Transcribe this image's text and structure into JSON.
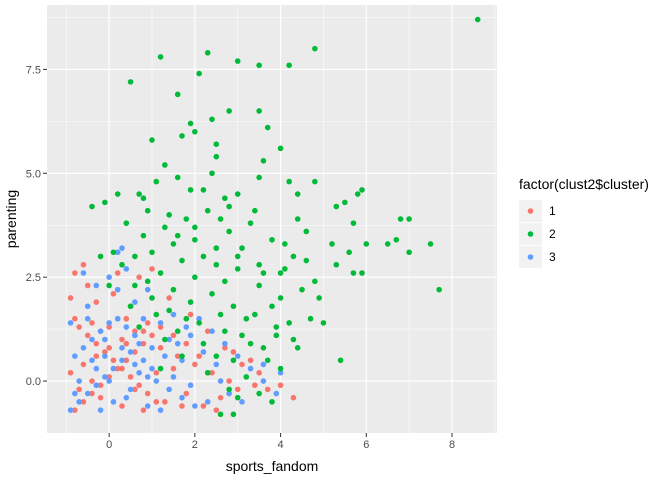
{
  "chart_data": {
    "type": "scatter",
    "xlabel": "sports_fandom",
    "ylabel": "parenting",
    "xlim": [
      -1.45,
      9.05
    ],
    "ylim": [
      -1.25,
      9.05
    ],
    "x_ticks": [
      0,
      2,
      4,
      6,
      8
    ],
    "y_ticks": [
      0.0,
      2.5,
      5.0,
      7.5
    ],
    "x_tick_labels": [
      "0",
      "2",
      "4",
      "6",
      "8"
    ],
    "y_tick_labels": [
      "0.0",
      "2.5",
      "5.0",
      "7.5"
    ],
    "grid": true,
    "legend": {
      "title": "factor(clust2$cluster)",
      "position": "right"
    },
    "colors": {
      "1": "#F8766D",
      "2": "#00BA38",
      "3": "#619CFF"
    },
    "series": [
      {
        "name": "1",
        "color": "#F8766D",
        "points": [
          [
            -0.8,
            -0.7
          ],
          [
            -0.6,
            -0.5
          ],
          [
            -0.4,
            -0.3
          ],
          [
            -0.2,
            -0.1
          ],
          [
            0.0,
            0.1
          ],
          [
            0.2,
            0.3
          ],
          [
            0.4,
            0.5
          ],
          [
            0.6,
            0.7
          ],
          [
            0.8,
            0.9
          ],
          [
            1.0,
            1.1
          ],
          [
            -0.7,
            1.3
          ],
          [
            -0.5,
            1.1
          ],
          [
            -0.3,
            0.9
          ],
          [
            -0.1,
            0.7
          ],
          [
            0.1,
            0.5
          ],
          [
            0.3,
            0.3
          ],
          [
            0.5,
            0.1
          ],
          [
            0.7,
            -0.1
          ],
          [
            0.9,
            -0.3
          ],
          [
            1.1,
            -0.5
          ],
          [
            -0.9,
            0.2
          ],
          [
            -0.6,
            0.4
          ],
          [
            -0.3,
            0.6
          ],
          [
            0.0,
            0.8
          ],
          [
            0.3,
            1.0
          ],
          [
            0.6,
            1.2
          ],
          [
            0.9,
            1.4
          ],
          [
            1.2,
            1.3
          ],
          [
            1.5,
            1.1
          ],
          [
            1.8,
            0.9
          ],
          [
            -0.8,
            1.5
          ],
          [
            -0.4,
            1.4
          ],
          [
            0.0,
            1.3
          ],
          [
            0.4,
            1.5
          ],
          [
            0.8,
            1.2
          ],
          [
            1.2,
            0.8
          ],
          [
            1.6,
            0.6
          ],
          [
            2.0,
            0.4
          ],
          [
            2.4,
            0.2
          ],
          [
            2.8,
            0.0
          ],
          [
            -0.7,
            -0.2
          ],
          [
            -0.2,
            -0.4
          ],
          [
            0.3,
            -0.6
          ],
          [
            0.8,
            -0.7
          ],
          [
            1.3,
            -0.5
          ],
          [
            1.8,
            -0.3
          ],
          [
            2.2,
            -0.6
          ],
          [
            2.6,
            -0.4
          ],
          [
            3.0,
            -0.2
          ],
          [
            3.4,
            -0.1
          ],
          [
            -0.9,
            2.0
          ],
          [
            -0.8,
            2.6
          ],
          [
            -0.5,
            2.3
          ],
          [
            -0.3,
            1.9
          ],
          [
            0.1,
            2.1
          ],
          [
            0.5,
            1.8
          ],
          [
            0.2,
            2.6
          ],
          [
            -0.6,
            2.8
          ],
          [
            0.7,
            2.5
          ],
          [
            1.0,
            2.7
          ],
          [
            1.4,
            2.0
          ],
          [
            1.9,
            1.6
          ],
          [
            2.3,
            1.2
          ],
          [
            2.7,
            0.8
          ],
          [
            3.1,
            0.4
          ],
          [
            3.5,
            0.2
          ],
          [
            4.0,
            -0.1
          ],
          [
            4.3,
            -0.4
          ],
          [
            3.7,
            -0.2
          ],
          [
            2.5,
            -0.7
          ],
          [
            -0.4,
            0.0
          ],
          [
            0.6,
            -0.2
          ],
          [
            1.5,
            0.3
          ],
          [
            2.1,
            0.6
          ],
          [
            0.4,
            0.9
          ],
          [
            -0.2,
            1.2
          ],
          [
            1.1,
            0.2
          ],
          [
            1.7,
            -0.6
          ],
          [
            2.9,
            0.7
          ],
          [
            3.3,
            0.5
          ]
        ]
      },
      {
        "name": "2",
        "color": "#00BA38",
        "points": [
          [
            8.6,
            8.7
          ],
          [
            4.8,
            8.0
          ],
          [
            2.3,
            7.9
          ],
          [
            1.2,
            7.8
          ],
          [
            3.0,
            7.7
          ],
          [
            3.5,
            7.6
          ],
          [
            4.2,
            7.6
          ],
          [
            2.1,
            7.4
          ],
          [
            0.5,
            7.2
          ],
          [
            1.6,
            6.9
          ],
          [
            2.8,
            6.5
          ],
          [
            3.5,
            6.5
          ],
          [
            2.4,
            6.3
          ],
          [
            3.7,
            6.1
          ],
          [
            1.9,
            6.2
          ],
          [
            2.0,
            6.0
          ],
          [
            1.7,
            5.9
          ],
          [
            1.0,
            5.8
          ],
          [
            4.0,
            5.6
          ],
          [
            2.5,
            5.7
          ],
          [
            3.6,
            5.3
          ],
          [
            2.5,
            5.4
          ],
          [
            1.3,
            5.2
          ],
          [
            2.4,
            5.0
          ],
          [
            1.6,
            4.9
          ],
          [
            3.5,
            4.9
          ],
          [
            1.1,
            4.8
          ],
          [
            4.2,
            4.8
          ],
          [
            4.8,
            4.8
          ],
          [
            5.8,
            4.5
          ],
          [
            5.9,
            4.6
          ],
          [
            0.2,
            4.5
          ],
          [
            -0.4,
            4.2
          ],
          [
            -0.1,
            4.3
          ],
          [
            0.7,
            4.5
          ],
          [
            0.8,
            4.4
          ],
          [
            1.9,
            4.6
          ],
          [
            2.2,
            4.6
          ],
          [
            2.7,
            4.4
          ],
          [
            3.0,
            4.5
          ],
          [
            4.4,
            4.5
          ],
          [
            5.5,
            4.3
          ],
          [
            5.3,
            4.2
          ],
          [
            5.7,
            3.8
          ],
          [
            6.8,
            3.9
          ],
          [
            7.0,
            3.9
          ],
          [
            6.0,
            3.3
          ],
          [
            6.5,
            3.3
          ],
          [
            7.5,
            3.3
          ],
          [
            6.7,
            3.4
          ],
          [
            5.6,
            3.1
          ],
          [
            5.2,
            3.3
          ],
          [
            7.0,
            3.1
          ],
          [
            5.3,
            2.8
          ],
          [
            5.7,
            2.6
          ],
          [
            7.7,
            2.2
          ],
          [
            5.9,
            2.6
          ],
          [
            4.8,
            2.4
          ],
          [
            5.4,
            0.5
          ],
          [
            4.2,
            1.4
          ],
          [
            3.0,
            3.0
          ],
          [
            2.5,
            2.8
          ],
          [
            2.0,
            2.5
          ],
          [
            1.5,
            2.2
          ],
          [
            1.0,
            2.0
          ],
          [
            0.5,
            1.8
          ],
          [
            3.5,
            2.8
          ],
          [
            4.0,
            2.6
          ],
          [
            4.5,
            2.2
          ],
          [
            3.8,
            1.8
          ],
          [
            3.2,
            1.5
          ],
          [
            2.7,
            1.2
          ],
          [
            2.2,
            0.9
          ],
          [
            1.7,
            0.6
          ],
          [
            1.2,
            0.3
          ],
          [
            2.9,
            0.5
          ],
          [
            3.3,
            0.9
          ],
          [
            3.9,
            1.1
          ],
          [
            4.4,
            0.8
          ],
          [
            4.7,
            1.5
          ],
          [
            0.8,
            3.5
          ],
          [
            1.3,
            3.7
          ],
          [
            1.8,
            3.9
          ],
          [
            2.3,
            4.1
          ],
          [
            2.8,
            3.6
          ],
          [
            3.3,
            3.8
          ],
          [
            3.8,
            3.4
          ],
          [
            4.3,
            3.0
          ],
          [
            4.6,
            3.6
          ],
          [
            1.0,
            3.1
          ],
          [
            1.5,
            3.3
          ],
          [
            2.0,
            3.4
          ],
          [
            2.5,
            3.2
          ],
          [
            3.0,
            2.7
          ],
          [
            3.5,
            2.3
          ],
          [
            4.0,
            2.0
          ],
          [
            1.2,
            2.6
          ],
          [
            1.7,
            2.9
          ],
          [
            2.2,
            3.0
          ],
          [
            2.7,
            2.4
          ],
          [
            0.3,
            2.8
          ],
          [
            0.6,
            3.0
          ],
          [
            0.9,
            2.4
          ],
          [
            1.4,
            1.7
          ],
          [
            1.9,
            1.9
          ],
          [
            2.4,
            2.1
          ],
          [
            2.9,
            1.8
          ],
          [
            3.4,
            1.6
          ],
          [
            3.9,
            1.3
          ],
          [
            4.3,
            1.0
          ],
          [
            0.4,
            3.8
          ],
          [
            0.1,
            3.1
          ],
          [
            -0.2,
            3.0
          ],
          [
            0.9,
            4.1
          ],
          [
            1.4,
            4.0
          ],
          [
            2.0,
            3.7
          ],
          [
            2.6,
            3.9
          ],
          [
            3.1,
            3.2
          ],
          [
            3.6,
            2.6
          ],
          [
            4.1,
            2.7
          ],
          [
            1.6,
            1.2
          ],
          [
            2.1,
            1.4
          ],
          [
            2.6,
            1.6
          ],
          [
            3.1,
            1.1
          ],
          [
            3.6,
            0.8
          ],
          [
            4.0,
            0.3
          ],
          [
            2.3,
            0.2
          ],
          [
            2.8,
            -0.2
          ],
          [
            3.2,
            0.1
          ],
          [
            3.7,
            0.5
          ],
          [
            1.3,
            1.0
          ],
          [
            1.8,
            1.5
          ],
          [
            0.7,
            1.3
          ],
          [
            1.1,
            1.6
          ],
          [
            2.5,
            0.6
          ],
          [
            3.0,
            -0.4
          ],
          [
            2.6,
            -0.8
          ],
          [
            2.9,
            -0.8
          ],
          [
            3.5,
            -0.3
          ],
          [
            3.8,
            -0.5
          ],
          [
            4.1,
            3.3
          ],
          [
            4.4,
            3.9
          ],
          [
            4.6,
            2.9
          ],
          [
            4.9,
            2.0
          ],
          [
            5.0,
            1.4
          ],
          [
            3.4,
            4.1
          ],
          [
            2.8,
            4.2
          ],
          [
            1.6,
            3.5
          ],
          [
            0.6,
            2.3
          ],
          [
            0.0,
            2.3
          ]
        ]
      },
      {
        "name": "3",
        "color": "#619CFF",
        "points": [
          [
            -0.9,
            -0.7
          ],
          [
            -0.7,
            -0.5
          ],
          [
            -0.5,
            -0.3
          ],
          [
            -0.3,
            -0.1
          ],
          [
            -0.1,
            0.1
          ],
          [
            0.1,
            0.3
          ],
          [
            0.3,
            0.5
          ],
          [
            0.5,
            0.7
          ],
          [
            0.7,
            0.9
          ],
          [
            0.9,
            -0.6
          ],
          [
            -0.8,
            0.6
          ],
          [
            -0.6,
            0.8
          ],
          [
            -0.4,
            1.0
          ],
          [
            -0.2,
            1.2
          ],
          [
            0.0,
            1.4
          ],
          [
            0.2,
            1.5
          ],
          [
            0.4,
            1.3
          ],
          [
            0.6,
            1.1
          ],
          [
            0.8,
            0.5
          ],
          [
            1.0,
            0.3
          ],
          [
            -0.9,
            1.4
          ],
          [
            -0.5,
            1.5
          ],
          [
            -0.1,
            1.0
          ],
          [
            0.3,
            0.8
          ],
          [
            0.7,
            0.2
          ],
          [
            1.1,
            0.0
          ],
          [
            1.4,
            -0.2
          ],
          [
            1.7,
            -0.4
          ],
          [
            2.0,
            -0.6
          ],
          [
            2.3,
            -0.5
          ],
          [
            -0.7,
            0.0
          ],
          [
            -0.3,
            0.3
          ],
          [
            0.1,
            -0.5
          ],
          [
            0.5,
            -0.2
          ],
          [
            0.9,
            0.1
          ],
          [
            1.3,
            0.6
          ],
          [
            1.6,
            0.9
          ],
          [
            1.9,
            1.1
          ],
          [
            2.2,
            0.7
          ],
          [
            2.5,
            0.4
          ],
          [
            -0.6,
            2.6
          ],
          [
            -0.3,
            2.3
          ],
          [
            0.0,
            2.5
          ],
          [
            0.2,
            3.1
          ],
          [
            0.4,
            2.7
          ],
          [
            0.2,
            2.2
          ],
          [
            -0.5,
            1.8
          ],
          [
            0.6,
            1.9
          ],
          [
            0.9,
            2.2
          ],
          [
            0.3,
            3.2
          ],
          [
            1.2,
            1.4
          ],
          [
            1.5,
            1.6
          ],
          [
            1.8,
            1.3
          ],
          [
            2.1,
            1.5
          ],
          [
            2.4,
            1.2
          ],
          [
            2.7,
            0.9
          ],
          [
            3.0,
            0.6
          ],
          [
            3.3,
            0.3
          ],
          [
            3.6,
            0.0
          ],
          [
            3.9,
            -0.3
          ],
          [
            -0.8,
            -0.3
          ],
          [
            -0.2,
            -0.7
          ],
          [
            0.4,
            -0.4
          ],
          [
            1.2,
            -0.7
          ],
          [
            1.5,
            0.1
          ],
          [
            1.9,
            -0.1
          ],
          [
            2.6,
            0.0
          ],
          [
            3.1,
            -0.5
          ],
          [
            3.6,
            0.4
          ],
          [
            4.0,
            0.2
          ],
          [
            -0.4,
            0.5
          ],
          [
            0.0,
            0.0
          ],
          [
            0.6,
            0.4
          ],
          [
            1.0,
            0.8
          ],
          [
            1.4,
            1.0
          ],
          [
            0.8,
            1.5
          ],
          [
            -0.1,
            0.6
          ],
          [
            1.7,
            0.5
          ],
          [
            2.3,
            0.2
          ],
          [
            2.8,
            -0.3
          ]
        ]
      }
    ]
  }
}
